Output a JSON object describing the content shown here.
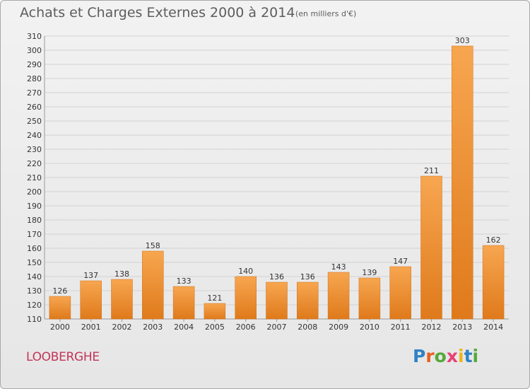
{
  "title": "Achats et Charges Externes 2000 à 2014",
  "unit_label": "(en milliers d'€)",
  "city": "LOOBERGHE",
  "logo_text": "Proxiti",
  "colors": {
    "bar_light": "#f6a24e",
    "bar_dark": "#e07c1c",
    "city": "#c43458"
  },
  "chart_data": {
    "type": "bar",
    "categories": [
      "2000",
      "2001",
      "2002",
      "2003",
      "2004",
      "2005",
      "2006",
      "2007",
      "2008",
      "2009",
      "2010",
      "2011",
      "2012",
      "2013",
      "2014"
    ],
    "values": [
      126,
      137,
      138,
      158,
      133,
      121,
      140,
      136,
      136,
      143,
      139,
      147,
      211,
      303,
      162
    ],
    "ylim": [
      110,
      310
    ],
    "ytick_step": 10,
    "grid": true
  }
}
